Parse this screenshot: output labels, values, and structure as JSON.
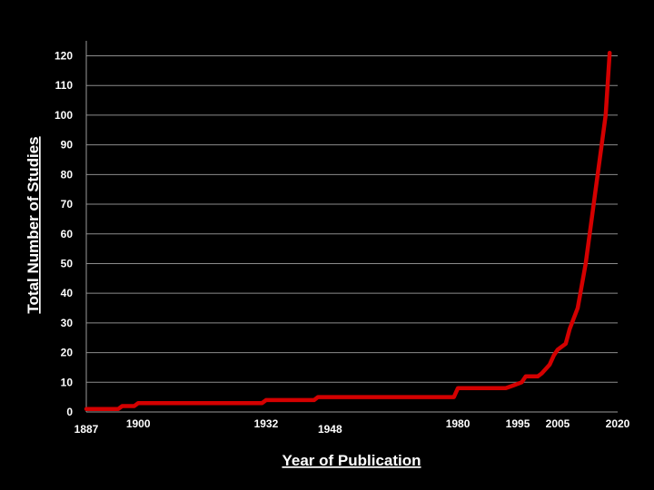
{
  "chart_data": {
    "type": "line",
    "title": "",
    "xlabel": "Year of Publication",
    "ylabel": "Total Number of Studies",
    "xlim": [
      1887,
      2020
    ],
    "ylim": [
      0,
      125
    ],
    "x_ticks": [
      1887,
      1900,
      1932,
      1948,
      1980,
      1995,
      2005,
      2020
    ],
    "y_ticks": [
      0,
      10,
      20,
      30,
      40,
      50,
      60,
      70,
      80,
      90,
      100,
      110,
      120
    ],
    "grid": true,
    "legend": "none",
    "line_color": "#d40000",
    "background": "#000000",
    "series": [
      {
        "points": [
          [
            1887,
            1
          ],
          [
            1895,
            1
          ],
          [
            1896,
            2
          ],
          [
            1899,
            2
          ],
          [
            1900,
            3
          ],
          [
            1931,
            3
          ],
          [
            1932,
            4
          ],
          [
            1944,
            4
          ],
          [
            1945,
            5
          ],
          [
            1979,
            5
          ],
          [
            1980,
            8
          ],
          [
            1992,
            8
          ],
          [
            1994,
            9
          ],
          [
            1996,
            10
          ],
          [
            1997,
            12
          ],
          [
            2000,
            12
          ],
          [
            2001,
            13
          ],
          [
            2003,
            16
          ],
          [
            2004,
            19
          ],
          [
            2005,
            21
          ],
          [
            2007,
            23
          ],
          [
            2008,
            28
          ],
          [
            2010,
            35
          ],
          [
            2012,
            50
          ],
          [
            2014,
            70
          ],
          [
            2015,
            80
          ],
          [
            2016,
            90
          ],
          [
            2017,
            100
          ],
          [
            2018,
            121
          ]
        ]
      }
    ]
  }
}
